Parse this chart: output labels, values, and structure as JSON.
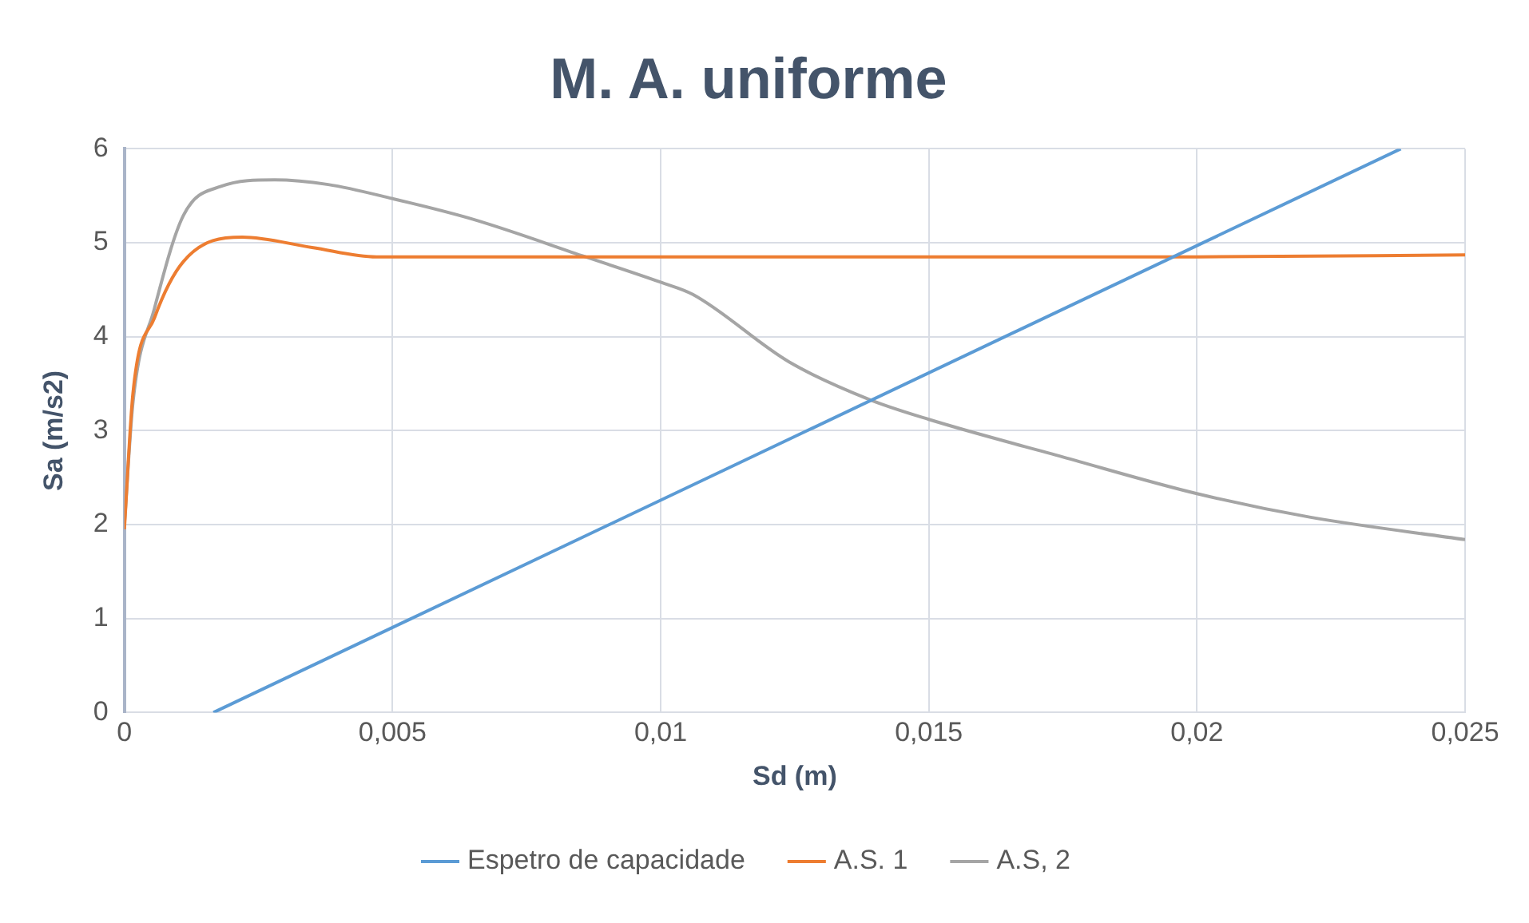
{
  "chart_data": {
    "type": "line",
    "title": "M. A. uniforme",
    "xlabel": "Sd (m)",
    "ylabel": "Sa (m/s2)",
    "xlim": [
      0,
      0.025
    ],
    "xticks": [
      {
        "value": 0,
        "label": "0"
      },
      {
        "value": 0.005,
        "label": "0,005"
      },
      {
        "value": 0.01,
        "label": "0,01"
      },
      {
        "value": 0.015,
        "label": "0,015"
      },
      {
        "value": 0.02,
        "label": "0,02"
      },
      {
        "value": 0.025,
        "label": "0,025"
      }
    ],
    "ylim": [
      0,
      6
    ],
    "yticks": [
      0,
      1,
      2,
      3,
      4,
      5,
      6
    ],
    "grid": true,
    "legend": "bottom",
    "marker": "none",
    "line_style": "solid",
    "series": [
      {
        "name": "Espetro de capacidade",
        "color": "#5b9bd5",
        "x": [
          0.00166,
          0.0238
        ],
        "values": [
          0,
          6
        ]
      },
      {
        "name": "A.S. 1",
        "color": "#ed7d31",
        "x": [
          0,
          0.00016,
          0.00056,
          0.0011,
          0.0022,
          0.0035,
          0.0047,
          0.01,
          0.015,
          0.02,
          0.025
        ],
        "values": [
          1.95,
          3.4,
          4.2,
          4.8,
          5.06,
          4.95,
          4.85,
          4.85,
          4.85,
          4.85,
          4.87
        ]
      },
      {
        "name": "A.S, 2",
        "color": "#a5a5a5",
        "x": [
          0,
          0.00016,
          0.00056,
          0.0011,
          0.0018,
          0.0028,
          0.0038,
          0.005,
          0.0065,
          0.0086,
          0.01,
          0.0106,
          0.0124,
          0.0139,
          0.015,
          0.0175,
          0.02,
          0.0221,
          0.025
        ],
        "values": [
          2.0,
          3.3,
          4.3,
          5.29,
          5.6,
          5.67,
          5.62,
          5.47,
          5.25,
          4.85,
          4.58,
          4.45,
          3.73,
          3.33,
          3.12,
          2.72,
          2.33,
          2.08,
          1.84
        ]
      }
    ]
  }
}
